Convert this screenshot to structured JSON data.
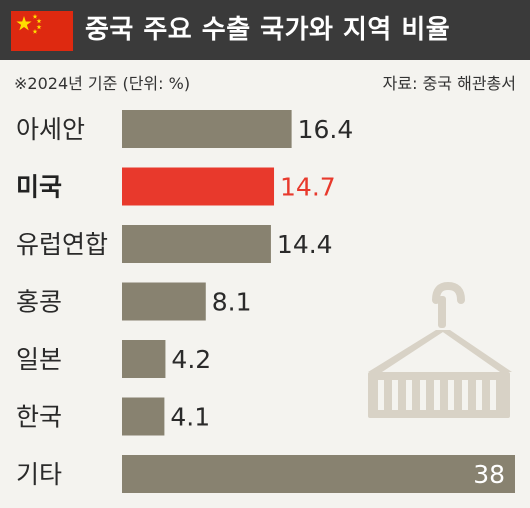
{
  "title": "중국 주요 수출 국가와 지역 비율",
  "note": "※2024년 기준 (단위: %)",
  "source": "자료: 중국 해관총서",
  "colors": {
    "header_bg": "#3a3a3a",
    "flag_red": "#de2910",
    "flag_yellow": "#ffde00",
    "bar_default": "#888270",
    "bar_highlight": "#e8392c",
    "text_dark": "#222222",
    "icon": "#d8d2c6"
  },
  "chart_data": {
    "type": "bar",
    "orientation": "horizontal",
    "categories": [
      "아세안",
      "미국",
      "유럽연합",
      "홍콩",
      "일본",
      "한국",
      "기타"
    ],
    "values": [
      16.4,
      14.7,
      14.4,
      8.1,
      4.2,
      4.1,
      38
    ],
    "value_labels": [
      "16.4",
      "14.7",
      "14.4",
      "8.1",
      "4.2",
      "4.1",
      "38"
    ],
    "highlight": "미국",
    "xlim": [
      0,
      38
    ],
    "grid": false,
    "icon": "shipping-container-icon"
  }
}
